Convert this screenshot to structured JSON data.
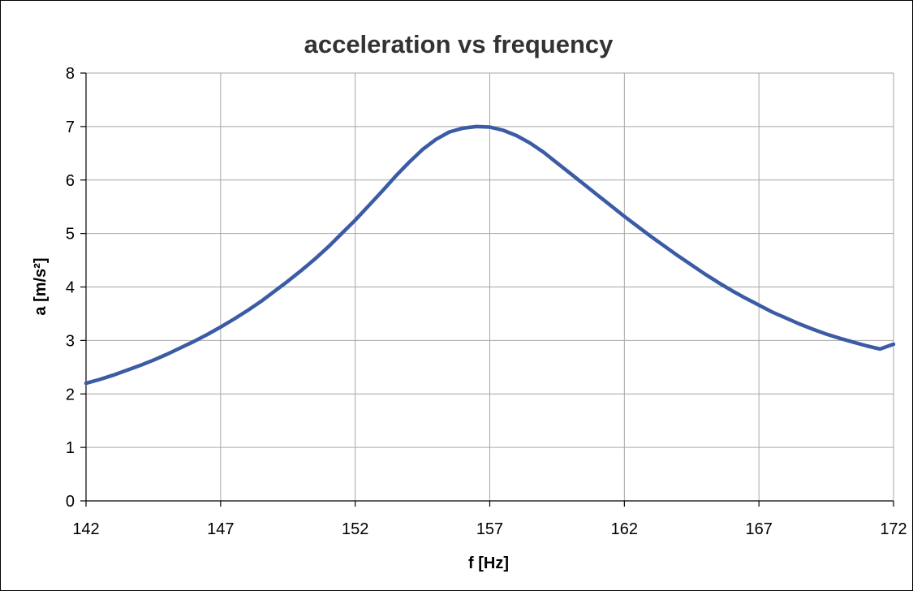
{
  "chart_data": {
    "type": "line",
    "title": "acceleration vs frequency",
    "xlabel": "f [Hz]",
    "ylabel": "a [m/s²]",
    "xlim": [
      142,
      172
    ],
    "ylim": [
      0,
      8
    ],
    "xticks": [
      142,
      147,
      152,
      157,
      162,
      167,
      172
    ],
    "yticks": [
      0,
      1,
      2,
      3,
      4,
      5,
      6,
      7,
      8
    ],
    "grid": true,
    "legend": "none",
    "series_color": "#3b5ba5",
    "series": [
      {
        "x": [
          142,
          142.5,
          143,
          143.5,
          144,
          144.5,
          145,
          145.5,
          146,
          146.5,
          147,
          147.5,
          148,
          148.5,
          149,
          149.5,
          150,
          150.5,
          151,
          151.5,
          152,
          152.5,
          153,
          153.5,
          154,
          154.5,
          155,
          155.5,
          156,
          156.5,
          157,
          157.5,
          158,
          158.5,
          159,
          159.5,
          160,
          160.5,
          161,
          161.5,
          162,
          162.5,
          163,
          163.5,
          164,
          164.5,
          165,
          165.5,
          166,
          166.5,
          167,
          167.5,
          168,
          168.5,
          169,
          169.5,
          170,
          170.5,
          171,
          171.5,
          172
        ],
        "y": [
          2.2,
          2.27,
          2.35,
          2.44,
          2.53,
          2.63,
          2.74,
          2.86,
          2.98,
          3.11,
          3.25,
          3.4,
          3.56,
          3.73,
          3.92,
          4.11,
          4.31,
          4.52,
          4.75,
          5.0,
          5.25,
          5.52,
          5.79,
          6.07,
          6.33,
          6.57,
          6.76,
          6.9,
          6.97,
          7.0,
          6.99,
          6.93,
          6.83,
          6.69,
          6.52,
          6.32,
          6.12,
          5.92,
          5.72,
          5.52,
          5.32,
          5.13,
          4.94,
          4.76,
          4.58,
          4.41,
          4.24,
          4.08,
          3.93,
          3.79,
          3.66,
          3.53,
          3.42,
          3.31,
          3.21,
          3.12,
          3.04,
          2.97,
          2.9,
          2.84,
          2.93
        ]
      }
    ]
  }
}
